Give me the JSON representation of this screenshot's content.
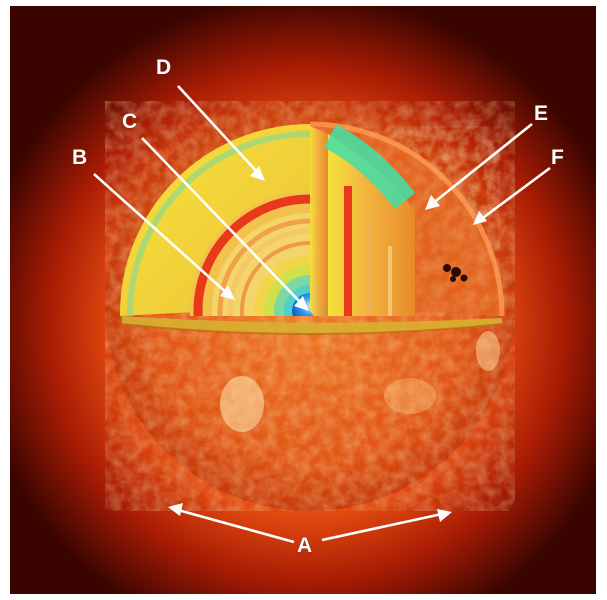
{
  "labels": {
    "a": "A",
    "b": "B",
    "c": "C",
    "d": "D",
    "e": "E",
    "f": "F"
  },
  "colors": {
    "background": "#3a0500",
    "corona": "#d83a08",
    "photosphere": "#e05a14",
    "convective_zone": "#f2e23a",
    "radiative_zone": "#f7d24a",
    "band_red": "#e8391a",
    "band_green": "#5fd49a",
    "core": "#1b8ee0",
    "arrow": "#ffffff"
  },
  "icons": {
    "sunspots": "sunspot-group"
  }
}
